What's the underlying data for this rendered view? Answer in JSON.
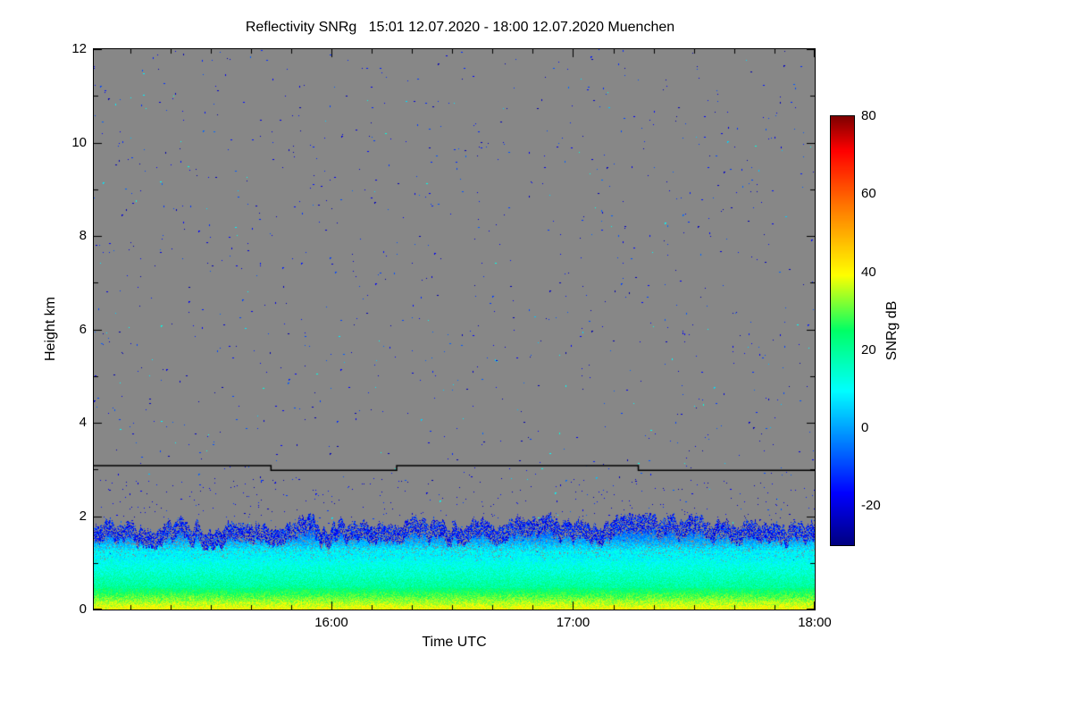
{
  "chart_data": {
    "type": "heatmap",
    "title": "Reflectivity SNRg   15:01 12.07.2020 - 18:00 12.07.2020 Muenchen",
    "quantity": "Reflectivity SNRg",
    "station": "Muenchen",
    "time_start": "15:01 12.07.2020",
    "time_end": "18:00 12.07.2020",
    "xlabel": "Time UTC",
    "ylabel": "Height km",
    "x_range_hours": [
      15.0167,
      18.0
    ],
    "x_ticks": [
      {
        "hour": 16,
        "label": "16:00"
      },
      {
        "hour": 17,
        "label": "17:00"
      },
      {
        "hour": 18,
        "label": "18:00"
      }
    ],
    "x_minor_tick_minutes": 10,
    "y_range_km": [
      0,
      12
    ],
    "y_ticks": [
      0,
      2,
      4,
      6,
      8,
      10,
      12
    ],
    "y_minor_tick_km": 1,
    "grid": false,
    "background_color": "#878787",
    "colorbar": {
      "label": "SNRg dB",
      "range": [
        -30,
        80
      ],
      "ticks": [
        80,
        60,
        40,
        20,
        0,
        -20
      ],
      "colormap": [
        {
          "t": 0.0,
          "color": "#000082"
        },
        {
          "t": 0.12,
          "color": "#0000ff"
        },
        {
          "t": 0.36,
          "color": "#00ffff"
        },
        {
          "t": 0.5,
          "color": "#00ff66"
        },
        {
          "t": 0.63,
          "color": "#ffff00"
        },
        {
          "t": 0.78,
          "color": "#ff8000"
        },
        {
          "t": 0.92,
          "color": "#ff0000"
        },
        {
          "t": 1.0,
          "color": "#7f0000"
        }
      ]
    },
    "noise_specks": {
      "count": 1300,
      "extra_near_layer": 220,
      "snr_db_range": [
        -26,
        -6
      ],
      "description": "sparse 1-2 px dark blue noise dots over gray no-signal background"
    },
    "signal_layer": {
      "description": "boundary-layer aerosol echo band from ground up to ~2 km",
      "top_km_min": 1.6,
      "top_km_max": 2.05,
      "top_km_mean": 1.82,
      "bands": [
        {
          "h0": 0.0,
          "h1": 0.45,
          "snr_db": [
            22,
            40
          ]
        },
        {
          "h0": 0.45,
          "h1": 1.2,
          "snr_db": [
            8,
            20
          ]
        },
        {
          "h0": 1.2,
          "h1": 2.05,
          "snr_db": [
            -22,
            10
          ]
        }
      ]
    },
    "detection_line": {
      "description": "black stepped line near 3 km height",
      "color": "#000000",
      "segments": [
        {
          "t0": 15.0167,
          "t1": 15.75,
          "h_km": 3.08
        },
        {
          "t0": 15.75,
          "t1": 16.27,
          "h_km": 2.98
        },
        {
          "t0": 16.27,
          "t1": 17.27,
          "h_km": 3.08
        },
        {
          "t0": 17.27,
          "t1": 18.0,
          "h_km": 2.98
        }
      ]
    }
  }
}
